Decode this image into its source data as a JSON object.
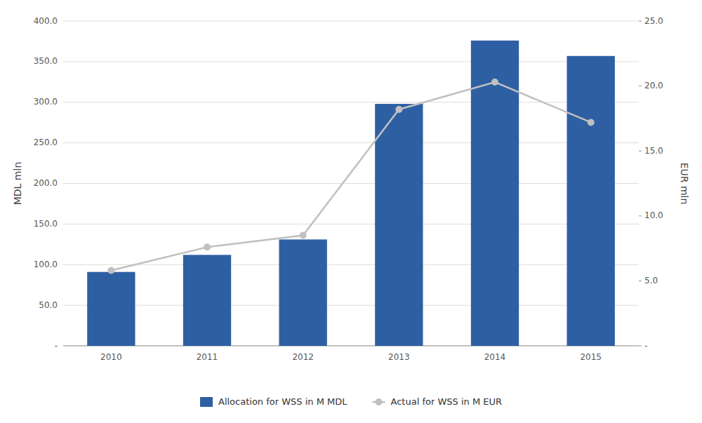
{
  "chart_data": {
    "type": "bar",
    "categories": [
      "2010",
      "2011",
      "2012",
      "2013",
      "2014",
      "2015"
    ],
    "series": [
      {
        "name": "Allocation for WSS in M MDL",
        "type": "bar",
        "color": "#2E5FA3",
        "values": [
          91,
          112,
          131,
          298,
          376,
          357
        ]
      },
      {
        "name": "Actual for WSS in M EUR",
        "type": "line",
        "axis": "y2",
        "color": "#C0C0C0",
        "marker": "circle",
        "values": [
          5.8,
          7.6,
          8.5,
          18.2,
          20.3,
          17.2
        ]
      }
    ],
    "ylabel": "MDL mln",
    "y2label": "EUR mln",
    "ylim": [
      0,
      400
    ],
    "yticks": [
      {
        "value": 0,
        "label": "-"
      },
      {
        "value": 50,
        "label": "50.0"
      },
      {
        "value": 100,
        "label": "100.0"
      },
      {
        "value": 150,
        "label": "150.0"
      },
      {
        "value": 200,
        "label": "200.0"
      },
      {
        "value": 250,
        "label": "250.0"
      },
      {
        "value": 300,
        "label": "300.0"
      },
      {
        "value": 350,
        "label": "350.0"
      },
      {
        "value": 400,
        "label": "400.0"
      }
    ],
    "y2lim": [
      0,
      25
    ],
    "y2ticks": [
      {
        "value": 0,
        "label": "-"
      },
      {
        "value": 5,
        "label": "5.0"
      },
      {
        "value": 10,
        "label": "10.0"
      },
      {
        "value": 15,
        "label": "15.0"
      },
      {
        "value": 20,
        "label": "20.0"
      },
      {
        "value": 25,
        "label": "25.0"
      }
    ],
    "grid": true,
    "legend": "bottom"
  }
}
